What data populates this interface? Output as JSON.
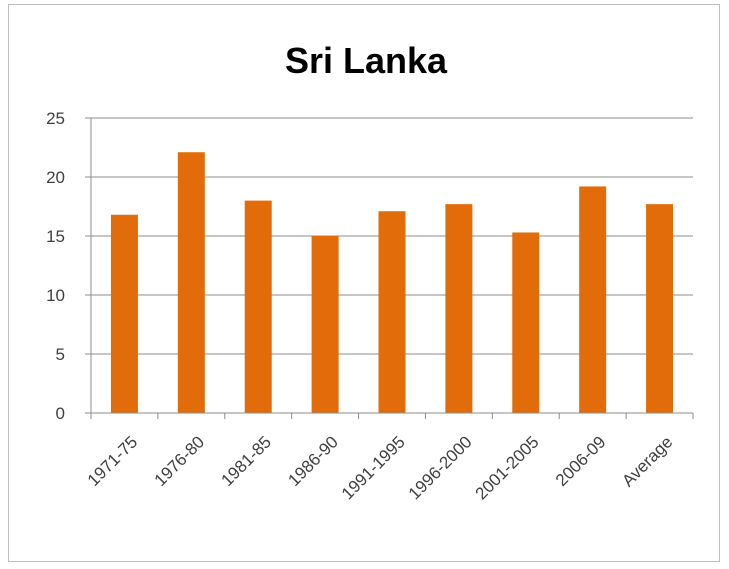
{
  "chart_data": {
    "type": "bar",
    "title": "Sri Lanka",
    "xlabel": "",
    "ylabel": "",
    "categories": [
      "1971-75",
      "1976-80",
      "1981-85",
      "1986-90",
      "1991-1995",
      "1996-2000",
      "2001-2005",
      "2006-09",
      "Average"
    ],
    "values": [
      16.8,
      22.1,
      18.0,
      15.0,
      17.1,
      17.7,
      15.3,
      19.2,
      17.7
    ],
    "ylim": [
      0,
      25
    ],
    "yticks": [
      "0",
      "5",
      "10",
      "15",
      "20",
      "25"
    ],
    "grid": true,
    "legend": "none",
    "colors": {
      "bar": "#e36c0a",
      "grid": "#8c8c8c",
      "axis": "#8c8c8c"
    }
  }
}
